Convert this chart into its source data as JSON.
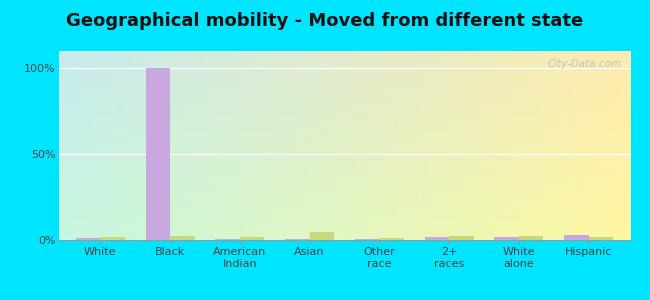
{
  "title": "Geographical mobility - Moved from different state",
  "categories": [
    "White",
    "Black",
    "American\nIndian",
    "Asian",
    "Other\nrace",
    "2+\nraces",
    "White\nalone",
    "Hispanic"
  ],
  "city_values": [
    1.0,
    100.0,
    0.5,
    0.5,
    0.3,
    1.5,
    2.0,
    3.0
  ],
  "state_values": [
    1.5,
    2.5,
    1.5,
    4.5,
    1.0,
    2.5,
    2.5,
    2.0
  ],
  "city_color": "#c9a8e0",
  "state_color": "#c8d87a",
  "background_color": "#00e5ff",
  "ylim": [
    0,
    110
  ],
  "yticks": [
    0,
    50,
    100
  ],
  "ytick_labels": [
    "0%",
    "50%",
    "100%"
  ],
  "watermark": "City-Data.com",
  "title_fontsize": 13,
  "tick_fontsize": 8,
  "bar_width": 0.35
}
